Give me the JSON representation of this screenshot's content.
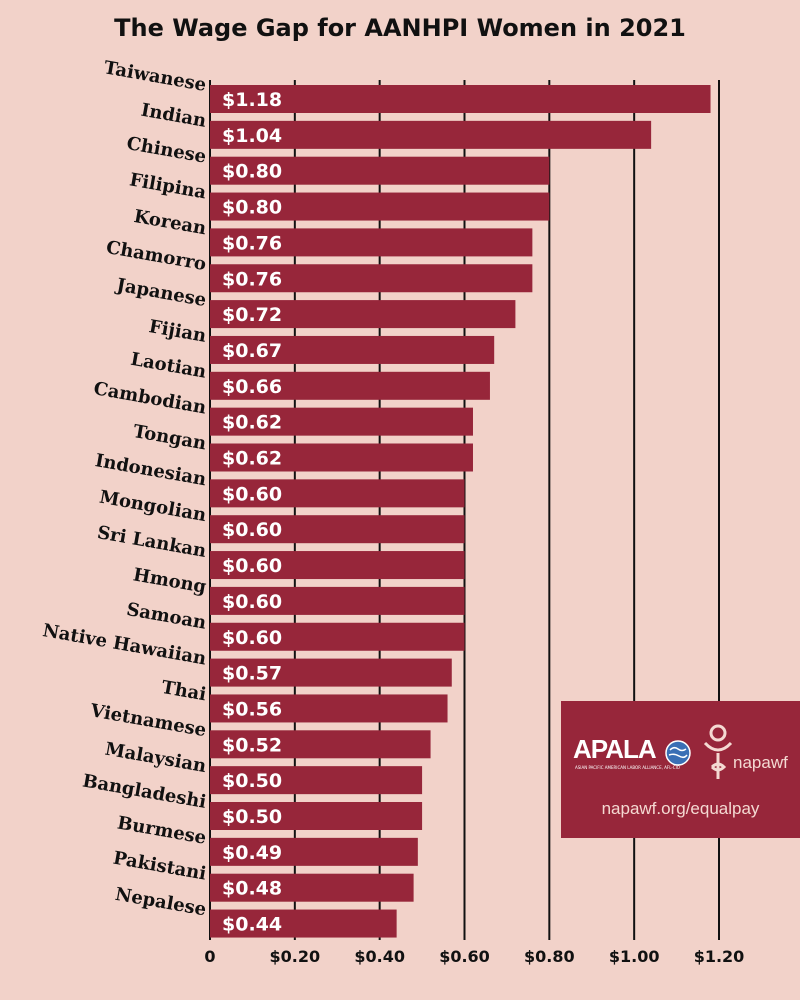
{
  "chart_data": {
    "type": "bar",
    "orientation": "horizontal",
    "title": "The Wage Gap for AANHPI Women in 2021",
    "categories": [
      "Taiwanese",
      "Indian",
      "Chinese",
      "Filipina",
      "Korean",
      "Chamorro",
      "Japanese",
      "Fijian",
      "Laotian",
      "Cambodian",
      "Tongan",
      "Indonesian",
      "Mongolian",
      "Sri Lankan",
      "Hmong",
      "Samoan",
      "Native Hawaiian",
      "Thai",
      "Vietnamese",
      "Malaysian",
      "Bangladeshi",
      "Burmese",
      "Pakistani",
      "Nepalese"
    ],
    "values": [
      1.18,
      1.04,
      0.8,
      0.8,
      0.76,
      0.76,
      0.72,
      0.67,
      0.66,
      0.62,
      0.62,
      0.6,
      0.6,
      0.6,
      0.6,
      0.6,
      0.57,
      0.56,
      0.52,
      0.5,
      0.5,
      0.49,
      0.48,
      0.44
    ],
    "data_labels": [
      "$1.18",
      "$1.04",
      "$0.80",
      "$0.80",
      "$0.76",
      "$0.76",
      "$0.72",
      "$0.67",
      "$0.66",
      "$0.62",
      "$0.62",
      "$0.60",
      "$0.60",
      "$0.60",
      "$0.60",
      "$0.60",
      "$0.57",
      "$0.56",
      "$0.52",
      "$0.50",
      "$0.50",
      "$0.49",
      "$0.48",
      "$0.44"
    ],
    "x_ticks": [
      0,
      0.2,
      0.4,
      0.6,
      0.8,
      1.0,
      1.2
    ],
    "x_tick_labels": [
      "0",
      "$0.20",
      "$0.40",
      "$0.60",
      "$0.80",
      "$1.00",
      "$1.20"
    ],
    "xlim": [
      0,
      1.2
    ],
    "grid": "vertical",
    "legend": "none",
    "colors": {
      "bar": "#97263a",
      "background": "#f2d2c9",
      "gridline": "#111111"
    }
  },
  "logos": {
    "apala": "APALA",
    "apala_sub": "ASIAN PACIFIC AMERICAN LABOR ALLIANCE, AFL-CIO",
    "napawf": "napawf",
    "url": "napawf.org/equalpay"
  }
}
